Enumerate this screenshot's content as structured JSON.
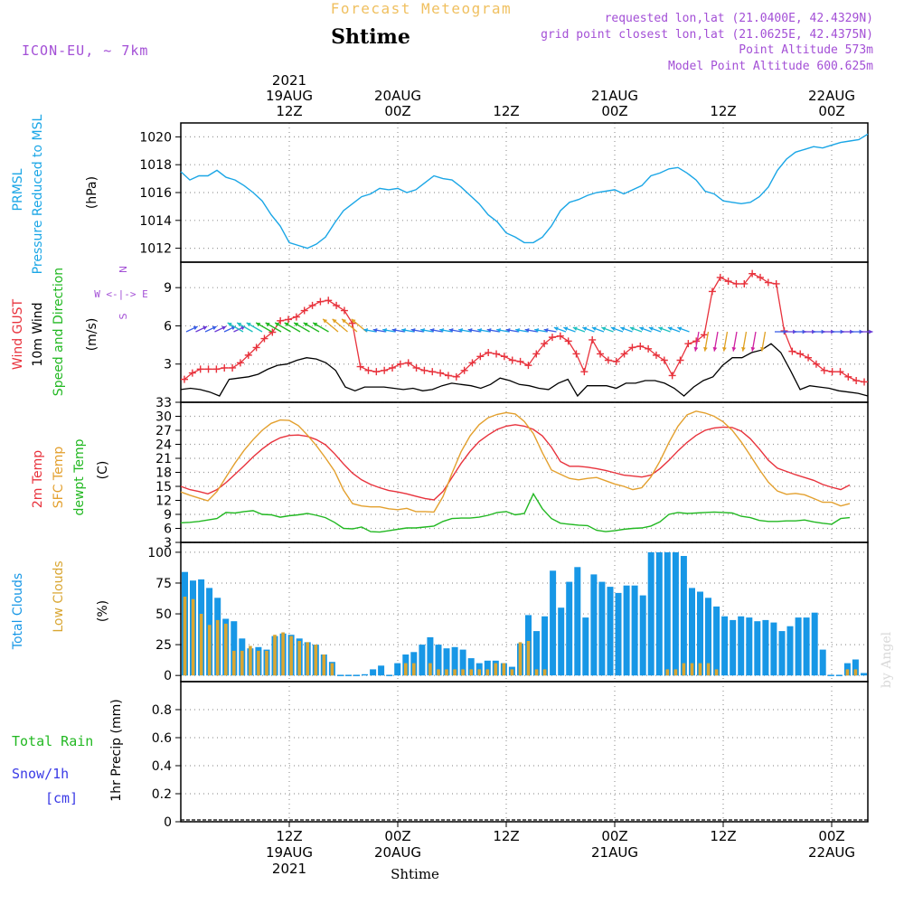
{
  "header": {
    "title_top": "Forecast Meteogram",
    "location": "Shtime",
    "model": "ICON-EU, ~ 7km",
    "requested": "requested lon,lat (21.0400E, 42.4329N)",
    "grid_point": "grid point closest lon,lat (21.0625E, 42.4375N)",
    "point_alt": "Point Altitude 573m",
    "model_alt": "Model Point Altitude 600.625m",
    "watermark": "by Angel",
    "footer_location": "Shtime"
  },
  "colors": {
    "pressure": "#1aa6e6",
    "gust": "#e8323c",
    "wind": "#000000",
    "temp2m": "#e8323c",
    "sfc": "#e3a02e",
    "dew": "#22b822",
    "total_clouds": "#1797e6",
    "low_clouds": "#d9a632",
    "rain": "#22b822",
    "snow": "#3a3ae6",
    "purple": "#a34fd6"
  },
  "time_axis": {
    "top": [
      {
        "id": "t0",
        "lines": [
          "2021",
          "19AUG",
          "12Z"
        ],
        "hour": 12
      },
      {
        "id": "t1",
        "lines": [
          "20AUG",
          "00Z"
        ],
        "hour": 24
      },
      {
        "id": "t2",
        "lines": [
          "12Z"
        ],
        "hour": 36
      },
      {
        "id": "t3",
        "lines": [
          "21AUG",
          "00Z"
        ],
        "hour": 48
      },
      {
        "id": "t4",
        "lines": [
          "12Z"
        ],
        "hour": 60
      },
      {
        "id": "t5",
        "lines": [
          "22AUG",
          "00Z"
        ],
        "hour": 72
      }
    ],
    "bottom": [
      {
        "id": "b0",
        "lines": [
          "12Z",
          "19AUG",
          "2021"
        ],
        "hour": 12
      },
      {
        "id": "b1",
        "lines": [
          "00Z",
          "20AUG"
        ],
        "hour": 24
      },
      {
        "id": "b2",
        "lines": [
          "12Z"
        ],
        "hour": 36
      },
      {
        "id": "b3",
        "lines": [
          "00Z",
          "21AUG"
        ],
        "hour": 48
      },
      {
        "id": "b4",
        "lines": [
          "12Z"
        ],
        "hour": 60
      },
      {
        "id": "b5",
        "lines": [
          "00Z",
          "22AUG"
        ],
        "hour": 72
      }
    ],
    "hour_range": [
      0,
      76
    ]
  },
  "labels": {
    "pressure": [
      "PRMSL",
      "Pressure Reduced to MSL"
    ],
    "pressure_unit": "(hPa)",
    "wind_gust": "Wind GUST",
    "wind10": "10m Wind",
    "wind_dir": "Speed and Direction",
    "wind_unit": "(m/s)",
    "compass": [
      "N",
      "W <-|-> E",
      "S"
    ],
    "temp2m": "2m Temp",
    "sfc": "SFC Temp",
    "dew": "dewpt Temp",
    "temp_unit": "(C)",
    "total_clouds": "Total Clouds",
    "low_clouds": "Low Clouds",
    "cloud_unit": "(%)",
    "total_rain": "Total  Rain",
    "snow": "Snow/1h",
    "snow_unit": "[cm]",
    "precip": "1hr Precip (mm)"
  },
  "chart_data": [
    {
      "type": "line",
      "id": "pressure",
      "title": "PRMSL Pressure Reduced to MSL",
      "ylabel": "(hPa)",
      "ylim": [
        1011,
        1021
      ],
      "yticks": [
        1012,
        1014,
        1016,
        1018,
        1020
      ],
      "x_hours": "0..76 step 1",
      "series": [
        {
          "name": "PRMSL",
          "values": [
            1017.5,
            1016.9,
            1017.2,
            1017.2,
            1017.6,
            1017.1,
            1016.9,
            1016.5,
            1016.0,
            1015.4,
            1014.4,
            1013.6,
            1012.4,
            1012.2,
            1012.0,
            1012.3,
            1012.8,
            1013.8,
            1014.7,
            1015.2,
            1015.7,
            1015.9,
            1016.3,
            1016.2,
            1016.3,
            1016.0,
            1016.2,
            1016.7,
            1017.2,
            1017.0,
            1016.9,
            1016.4,
            1015.8,
            1015.2,
            1014.4,
            1013.9,
            1013.1,
            1012.8,
            1012.4,
            1012.4,
            1012.8,
            1013.6,
            1014.7,
            1015.3,
            1015.5,
            1015.8,
            1016.0,
            1016.1,
            1016.2,
            1015.9,
            1016.2,
            1016.5,
            1017.2,
            1017.4,
            1017.7,
            1017.8,
            1017.4,
            1016.9,
            1016.1,
            1015.9,
            1015.4,
            1015.3,
            1015.2,
            1015.3,
            1015.7,
            1016.4,
            1017.6,
            1018.4,
            1018.9,
            1019.1,
            1019.3,
            1019.2,
            1019.4,
            1019.6,
            1019.7,
            1019.8,
            1020.2
          ]
        }
      ]
    },
    {
      "type": "line",
      "id": "wind",
      "title": "Wind GUST / 10m Wind Speed and Direction",
      "ylabel": "(m/s)",
      "ylim": [
        0,
        11
      ],
      "yticks": [
        3,
        6,
        9
      ],
      "series": [
        {
          "name": "Wind GUST",
          "values": [
            1.8,
            2.3,
            2.6,
            2.6,
            2.6,
            2.7,
            2.7,
            3.1,
            3.7,
            4.3,
            5.0,
            5.5,
            6.4,
            6.5,
            6.7,
            7.2,
            7.6,
            7.9,
            8.0,
            7.6,
            7.2,
            6.2,
            2.8,
            2.5,
            2.4,
            2.5,
            2.7,
            3.0,
            3.1,
            2.7,
            2.5,
            2.4,
            2.3,
            2.1,
            2.0,
            2.5,
            3.1,
            3.6,
            3.9,
            3.8,
            3.6,
            3.3,
            3.2,
            2.9,
            3.8,
            4.6,
            5.1,
            5.2,
            4.8,
            3.8,
            2.4,
            4.9,
            3.8,
            3.3,
            3.2,
            3.8,
            4.3,
            4.4,
            4.2,
            3.7,
            3.3,
            2.1,
            3.3,
            4.6,
            4.8,
            5.3,
            8.7,
            9.8,
            9.5,
            9.3,
            9.3,
            10.1,
            9.8,
            9.4,
            9.3,
            5.6,
            4.0,
            3.8,
            3.5,
            3.0,
            2.5,
            2.4,
            2.4,
            2.0,
            1.7,
            1.6
          ]
        },
        {
          "name": "10m Wind",
          "values": [
            1.0,
            1.1,
            1.0,
            0.8,
            0.5,
            1.8,
            1.9,
            2.0,
            2.2,
            2.6,
            2.9,
            3.0,
            3.3,
            3.5,
            3.4,
            3.1,
            2.5,
            1.2,
            0.9,
            1.2,
            1.2,
            1.2,
            1.1,
            1.0,
            1.1,
            0.9,
            1.0,
            1.3,
            1.5,
            1.4,
            1.3,
            1.1,
            1.4,
            1.9,
            1.7,
            1.4,
            1.3,
            1.1,
            1.0,
            1.5,
            1.8,
            0.5,
            1.3,
            1.3,
            1.3,
            1.1,
            1.5,
            1.5,
            1.7,
            1.7,
            1.5,
            1.1,
            0.5,
            1.2,
            1.7,
            2.0,
            2.9,
            3.5,
            3.5,
            3.9,
            4.1,
            4.6,
            3.9,
            2.5,
            1.0,
            1.3,
            1.2,
            1.1,
            0.9,
            0.8,
            0.7,
            0.5
          ]
        }
      ]
    },
    {
      "type": "line",
      "id": "temperature",
      "title": "2m Temp / SFC Temp / dewpt Temp",
      "ylabel": "(C)",
      "ylim": [
        3,
        33
      ],
      "yticks": [
        3,
        6,
        9,
        12,
        15,
        18,
        21,
        24,
        27,
        30,
        33
      ],
      "series": [
        {
          "name": "2m Temp",
          "values": [
            15.0,
            14.3,
            13.9,
            13.4,
            14.3,
            15.8,
            17.6,
            19.4,
            21.3,
            23.0,
            24.4,
            25.4,
            25.9,
            26.0,
            25.7,
            25.0,
            23.9,
            22.0,
            19.8,
            17.8,
            16.4,
            15.4,
            14.7,
            14.1,
            13.8,
            13.4,
            12.9,
            12.4,
            12.1,
            13.9,
            16.9,
            19.9,
            22.5,
            24.6,
            26.0,
            27.2,
            27.9,
            28.2,
            27.9,
            27.2,
            25.8,
            23.4,
            20.3,
            19.3,
            19.3,
            19.1,
            18.8,
            18.4,
            17.9,
            17.4,
            17.2,
            17.0,
            17.4,
            18.8,
            20.6,
            22.6,
            24.4,
            25.9,
            27.0,
            27.5,
            27.7,
            27.6,
            26.8,
            25.2,
            23.0,
            20.6,
            18.9,
            18.2,
            17.5,
            16.9,
            16.3,
            15.4,
            14.8,
            14.3,
            15.3
          ]
        },
        {
          "name": "SFC Temp",
          "values": [
            13.8,
            13.1,
            12.5,
            11.9,
            13.9,
            17.0,
            20.0,
            22.7,
            25.0,
            27.0,
            28.5,
            29.2,
            29.1,
            28.0,
            26.0,
            23.7,
            21.1,
            18.3,
            14.2,
            11.3,
            10.8,
            10.6,
            10.6,
            10.2,
            10.0,
            10.3,
            9.6,
            9.6,
            9.5,
            12.8,
            17.8,
            22.4,
            25.8,
            28.2,
            29.7,
            30.4,
            30.8,
            30.5,
            28.9,
            26.3,
            22.2,
            18.5,
            17.6,
            16.7,
            16.4,
            16.7,
            16.9,
            16.2,
            15.5,
            15.0,
            14.3,
            14.7,
            17.0,
            20.4,
            24.4,
            27.9,
            30.3,
            31.1,
            30.7,
            30.0,
            28.8,
            27.0,
            24.5,
            21.6,
            18.6,
            15.9,
            14.0,
            13.3,
            13.5,
            13.2,
            12.4,
            11.6,
            11.6,
            10.8,
            11.3
          ]
        },
        {
          "name": "dewpt Temp",
          "values": [
            7.2,
            7.3,
            7.5,
            7.8,
            8.1,
            9.4,
            9.3,
            9.6,
            9.8,
            9.0,
            8.9,
            8.4,
            8.7,
            8.9,
            9.2,
            8.8,
            8.3,
            7.3,
            6.0,
            5.9,
            6.3,
            5.3,
            5.2,
            5.5,
            5.8,
            6.1,
            6.1,
            6.3,
            6.5,
            7.5,
            8.1,
            8.2,
            8.2,
            8.4,
            8.8,
            9.4,
            9.6,
            8.9,
            9.2,
            13.4,
            10.2,
            8.1,
            7.1,
            6.9,
            6.7,
            6.6,
            5.6,
            5.3,
            5.5,
            5.8,
            6.0,
            6.1,
            6.5,
            7.4,
            9.0,
            9.4,
            9.2,
            9.3,
            9.4,
            9.5,
            9.4,
            9.3,
            8.6,
            8.3,
            7.7,
            7.5,
            7.5,
            7.6,
            7.6,
            7.8,
            7.4,
            7.1,
            6.9,
            8.1,
            8.3
          ]
        }
      ]
    },
    {
      "type": "bar",
      "id": "clouds",
      "title": "Total Clouds / Low Clouds",
      "ylabel": "(%)",
      "ylim": [
        -5,
        108
      ],
      "yticks": [
        0,
        25,
        50,
        75,
        100
      ],
      "series": [
        {
          "name": "Total Clouds",
          "values": [
            84,
            77,
            78,
            71,
            63,
            46,
            44,
            30,
            22,
            23,
            21,
            32,
            34,
            33,
            30,
            27,
            25,
            17,
            11,
            0,
            0,
            0,
            1,
            5,
            8,
            0,
            10,
            17,
            19,
            25,
            31,
            25,
            22,
            23,
            21,
            14,
            10,
            12,
            12,
            10,
            7,
            26,
            49,
            36,
            48,
            85,
            55,
            76,
            88,
            47,
            82,
            76,
            72,
            67,
            73,
            73,
            65,
            100,
            100,
            100,
            100,
            97,
            71,
            68,
            63,
            56,
            48,
            45,
            48,
            47,
            44,
            45,
            43,
            36,
            40,
            47,
            47,
            51,
            21,
            0,
            0,
            10,
            13,
            2
          ]
        },
        {
          "name": "Low Clouds",
          "values": [
            64,
            62,
            50,
            41,
            45,
            42,
            20,
            20,
            24,
            20,
            20,
            33,
            35,
            32,
            28,
            27,
            25,
            17,
            10,
            0,
            0,
            0,
            0,
            0,
            0,
            0,
            0,
            10,
            10,
            0,
            10,
            5,
            5,
            5,
            5,
            5,
            5,
            5,
            10,
            10,
            5,
            27,
            28,
            5,
            5,
            0,
            0,
            0,
            0,
            0,
            0,
            0,
            0,
            0,
            0,
            0,
            0,
            0,
            0,
            5,
            5,
            10,
            10,
            10,
            10,
            5,
            0,
            0,
            0,
            0,
            0,
            0,
            0,
            0,
            0,
            0,
            0,
            0,
            0,
            0,
            0,
            5,
            5,
            0
          ]
        }
      ]
    },
    {
      "type": "bar",
      "id": "precip",
      "title": "1hr Precip (mm)",
      "ylabel": "1hr Precip (mm)",
      "ylim": [
        0,
        1.0
      ],
      "yticks": [
        0,
        0.2,
        0.4,
        0.6,
        0.8
      ],
      "series": [
        {
          "name": "Total Rain",
          "values": []
        },
        {
          "name": "Snow/1h",
          "values": []
        }
      ]
    }
  ]
}
